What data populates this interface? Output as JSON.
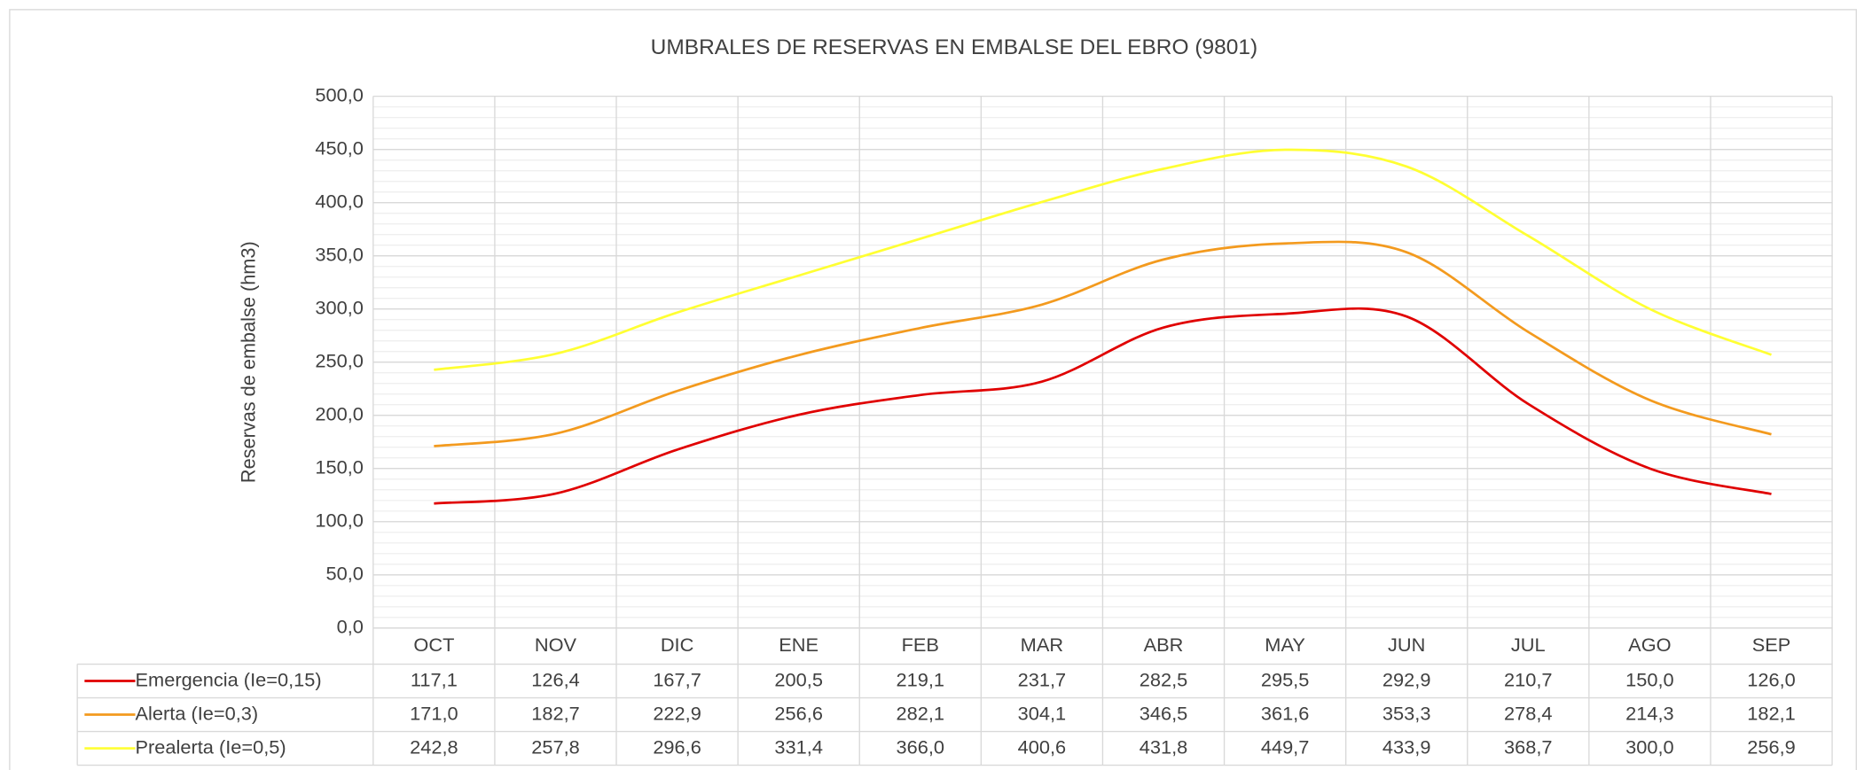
{
  "chart_data": {
    "type": "line",
    "title": "UMBRALES DE RESERVAS EN EMBALSE DEL EBRO (9801)",
    "y_label": "Reservas de embalse (hm3)",
    "categories": [
      "OCT",
      "NOV",
      "DIC",
      "ENE",
      "FEB",
      "MAR",
      "ABR",
      "MAY",
      "JUN",
      "JUL",
      "AGO",
      "SEP"
    ],
    "series": [
      {
        "name": "Emergencia (Ie=0,15)",
        "color": "#e00000",
        "values": [
          117.1,
          126.4,
          167.7,
          200.5,
          219.1,
          231.7,
          282.5,
          295.5,
          292.9,
          210.7,
          150.0,
          126.0
        ],
        "value_labels": [
          "117,1",
          "126,4",
          "167,7",
          "200,5",
          "219,1",
          "231,7",
          "282,5",
          "295,5",
          "292,9",
          "210,7",
          "150,0",
          "126,0"
        ]
      },
      {
        "name": "Alerta (Ie=0,3)",
        "color": "#f39a1e",
        "values": [
          171.0,
          182.7,
          222.9,
          256.6,
          282.1,
          304.1,
          346.5,
          361.6,
          353.3,
          278.4,
          214.3,
          182.1
        ],
        "value_labels": [
          "171,0",
          "182,7",
          "222,9",
          "256,6",
          "282,1",
          "304,1",
          "346,5",
          "361,6",
          "353,3",
          "278,4",
          "214,3",
          "182,1"
        ]
      },
      {
        "name": "Prealerta (Ie=0,5)",
        "color": "#ffff33",
        "values": [
          242.8,
          257.8,
          296.6,
          331.4,
          366.0,
          400.6,
          431.8,
          449.7,
          433.9,
          368.7,
          300.0,
          256.9
        ],
        "value_labels": [
          "242,8",
          "257,8",
          "296,6",
          "331,4",
          "366,0",
          "400,6",
          "431,8",
          "449,7",
          "433,9",
          "368,7",
          "300,0",
          "256,9"
        ]
      }
    ],
    "ylim": [
      0,
      500
    ],
    "yticks": [
      {
        "value": 0,
        "label": "0,0"
      },
      {
        "value": 50,
        "label": "50,0"
      },
      {
        "value": 100,
        "label": "100,0"
      },
      {
        "value": 150,
        "label": "150,0"
      },
      {
        "value": 200,
        "label": "200,0"
      },
      {
        "value": 250,
        "label": "250,0"
      },
      {
        "value": 300,
        "label": "300,0"
      },
      {
        "value": 350,
        "label": "350,0"
      },
      {
        "value": 400,
        "label": "400,0"
      },
      {
        "value": 450,
        "label": "450,0"
      },
      {
        "value": 500,
        "label": "500,0"
      }
    ],
    "grid": true,
    "minor_grid": true,
    "smooth": true,
    "data_table": true
  }
}
